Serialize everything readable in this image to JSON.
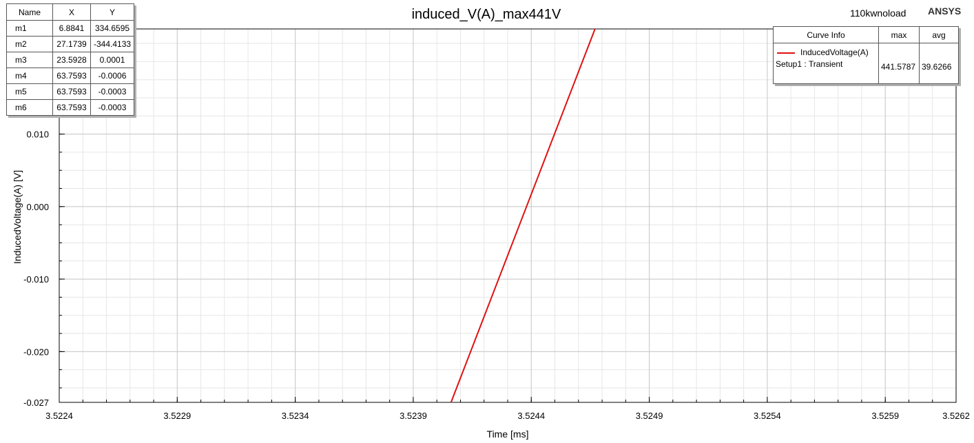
{
  "header": {
    "project": "110kwnoload",
    "brand": "ANSYS"
  },
  "marker_table": {
    "columns": [
      "Name",
      "X",
      "Y"
    ],
    "rows": [
      [
        "m1",
        "6.8841",
        "334.6595"
      ],
      [
        "m2",
        "27.1739",
        "-344.4133"
      ],
      [
        "m3",
        "23.5928",
        "0.0001"
      ],
      [
        "m4",
        "63.7593",
        "-0.0006"
      ],
      [
        "m5",
        "63.7593",
        "-0.0003"
      ],
      [
        "m6",
        "63.7593",
        "-0.0003"
      ]
    ]
  },
  "curve_info": {
    "title": "Curve Info",
    "col_max": "max",
    "col_avg": "avg",
    "curve_name": "InducedVoltage(A)",
    "setup": "Setup1 : Transient",
    "max": "441.5787",
    "avg": "39.6266"
  },
  "colors": {
    "series": "#e01010",
    "grid_major": "#c8c8c8",
    "grid_minor": "#e6e6e6"
  },
  "chart_data": {
    "type": "line",
    "title": "induced_V(A)_max441V",
    "xlabel": "Time [ms]",
    "ylabel": "InducedVoltage(A) [V]",
    "xlim": [
      3.5224,
      3.5262
    ],
    "ylim": [
      -0.027,
      0.0245
    ],
    "x_ticks": [
      3.5224,
      3.5229,
      3.5234,
      3.5239,
      3.5244,
      3.5249,
      3.5254,
      3.5259,
      3.5262
    ],
    "x_tick_labels": [
      "3.5224",
      "3.5229",
      "3.5234",
      "3.5239",
      "3.5244",
      "3.5249",
      "3.5254",
      "3.5259",
      "3.5262"
    ],
    "y_ticks": [
      -0.027,
      -0.02,
      -0.01,
      0.0,
      0.01
    ],
    "y_tick_labels": [
      "-0.027",
      "-0.020",
      "-0.010",
      "0.000",
      "0.010"
    ],
    "grid": true,
    "series": [
      {
        "name": "InducedVoltage(A)",
        "x": [
          3.52406,
          3.52467
        ],
        "y": [
          -0.027,
          0.0245
        ]
      }
    ]
  }
}
